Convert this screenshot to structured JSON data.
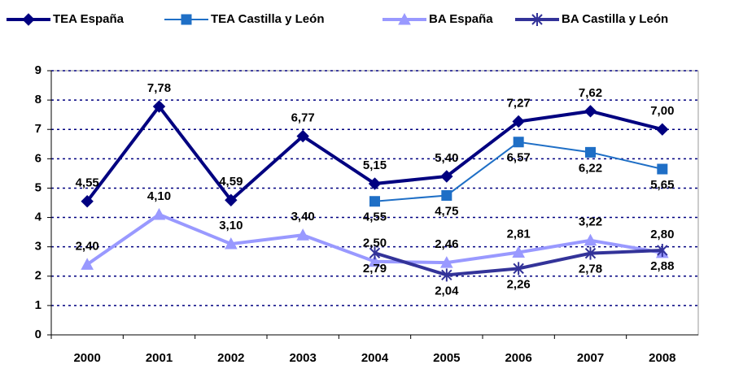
{
  "chart_data": {
    "type": "line",
    "categories": [
      "2000",
      "2001",
      "2002",
      "2003",
      "2004",
      "2005",
      "2006",
      "2007",
      "2008"
    ],
    "series": [
      {
        "name": "TEA España",
        "color": "#000080",
        "marker": "diamond",
        "values": [
          4.55,
          7.78,
          4.59,
          6.77,
          5.15,
          5.4,
          7.27,
          7.62,
          7.0
        ],
        "value_labels": [
          "4,55",
          "7,78",
          "4,59",
          "6,77",
          "5,15",
          "5,40",
          "7,27",
          "7,62",
          "7,00"
        ]
      },
      {
        "name": "TEA Castilla y León",
        "color": "#1f6fc6",
        "marker": "square",
        "values": [
          null,
          null,
          null,
          null,
          4.55,
          4.75,
          6.57,
          6.22,
          5.65
        ],
        "value_labels": [
          null,
          null,
          null,
          null,
          "4,55",
          "4,75",
          "6,57",
          "6,22",
          "5,65"
        ]
      },
      {
        "name": "BA España",
        "color": "#9999ff",
        "marker": "triangle",
        "values": [
          2.4,
          4.1,
          3.1,
          3.4,
          2.5,
          2.46,
          2.81,
          3.22,
          2.8
        ],
        "value_labels": [
          "2,40",
          "4,10",
          "3,10",
          "3,40",
          "2,50",
          "2,46",
          "2,81",
          "3,22",
          "2,80"
        ]
      },
      {
        "name": "BA Castilla y León",
        "color": "#333399",
        "marker": "star",
        "values": [
          null,
          null,
          null,
          null,
          2.79,
          2.04,
          2.26,
          2.78,
          2.88
        ],
        "value_labels": [
          null,
          null,
          null,
          null,
          "2,79",
          "2,04",
          "2,26",
          "2,78",
          "2,88"
        ]
      }
    ],
    "ylim": [
      0,
      9
    ],
    "yticks": [
      0,
      1,
      2,
      3,
      4,
      5,
      6,
      7,
      8,
      9
    ],
    "grid": true,
    "legend": "top"
  }
}
